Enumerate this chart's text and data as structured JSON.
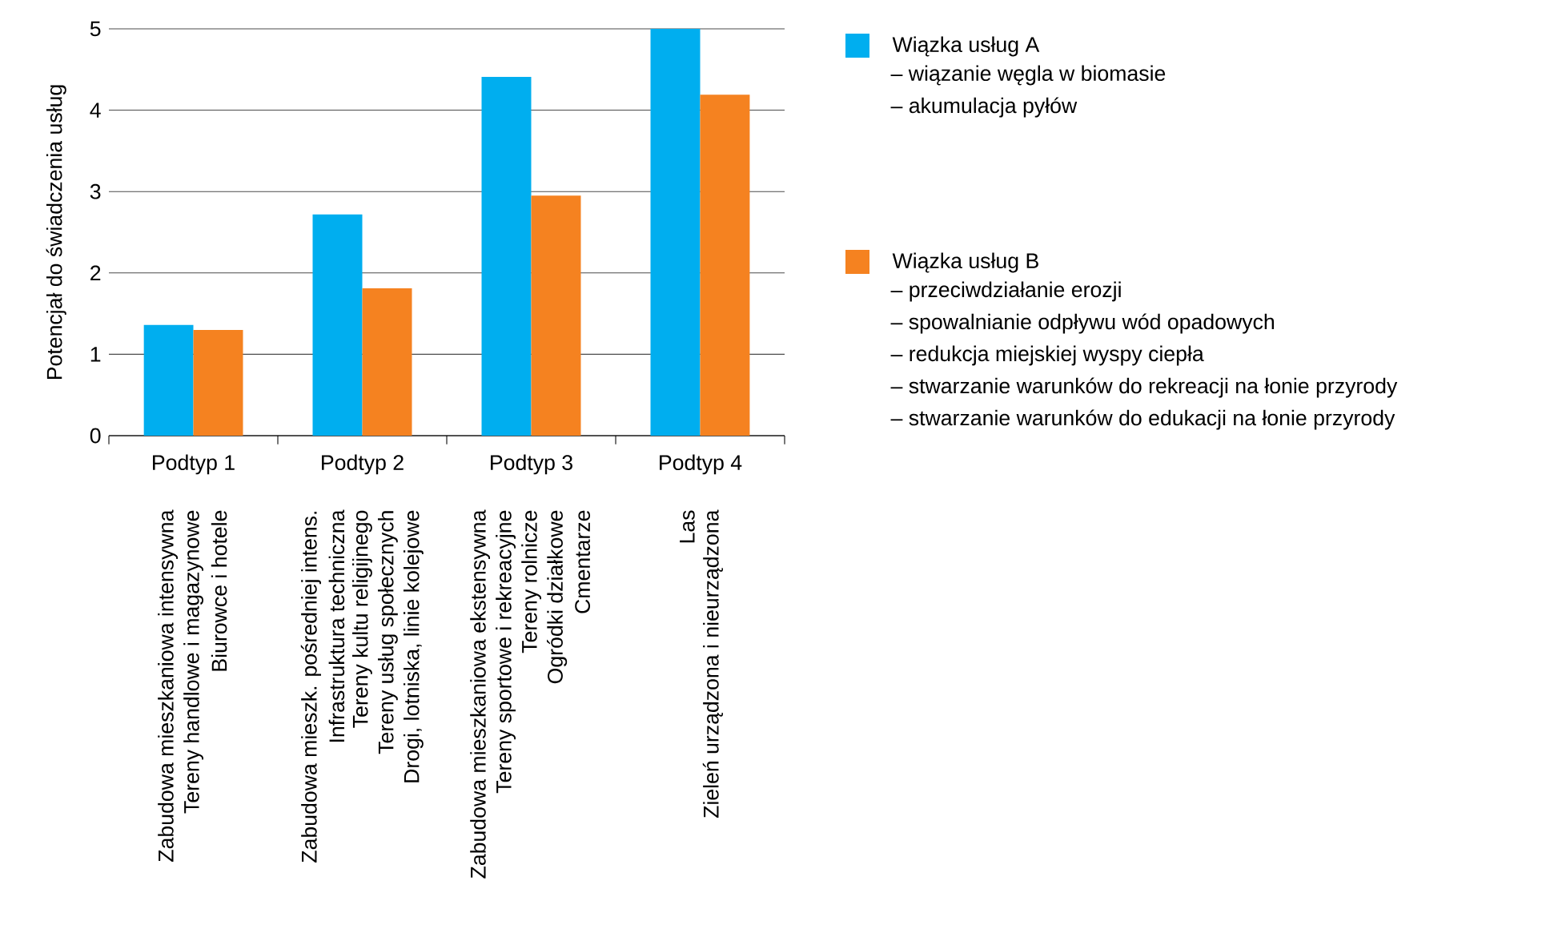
{
  "chart_data": {
    "type": "bar",
    "ylabel": "Potencjał do świadczenia usług",
    "categories": [
      "Podtyp 1",
      "Podtyp 2",
      "Podtyp 3",
      "Podtyp 4"
    ],
    "series": [
      {
        "name": "Wiązka usług A",
        "color": "#00aeef",
        "values": [
          1.36,
          2.72,
          4.41,
          5.0
        ]
      },
      {
        "name": "Wiązka usług B",
        "color": "#f58220",
        "values": [
          1.3,
          1.81,
          2.95,
          4.19
        ]
      }
    ],
    "ylim": [
      0,
      5
    ],
    "yticks": [
      0,
      1,
      2,
      3,
      4,
      5
    ],
    "grid": "y",
    "legend": "right",
    "annotations": [
      "Zabudowa mieszkaniowa intensywna",
      "Tereny handlowe i magazynowe",
      "Biurowce i hotele",
      "Zabudowa mieszk. pośredniej intens.",
      "Infrastruktura techniczna",
      "Tereny kultu religijnego",
      "Tereny usług społecznych",
      "Drogi, lotniska, linie kolejowe",
      "Zabudowa mieszkaniowa ekstensywna",
      "Tereny sportowe i rekreacyjne",
      "Tereny rolnicze",
      "Ogródki działkowe",
      "Cmentarze",
      "Las",
      "Zieleń urządzona i nieurządzona",
      "– wiązanie węgla w biomasie",
      "– akumulacja pyłów",
      "– przeciwdziałanie erozji",
      "– spowalnianie odpływu wód opadowych",
      "– redukcja miejskiej wyspy ciepła",
      "– stwarzanie warunków do rekreacji na łonie przyrody",
      "– stwarzanie warunków do edukacji na łonie przyrody"
    ]
  }
}
